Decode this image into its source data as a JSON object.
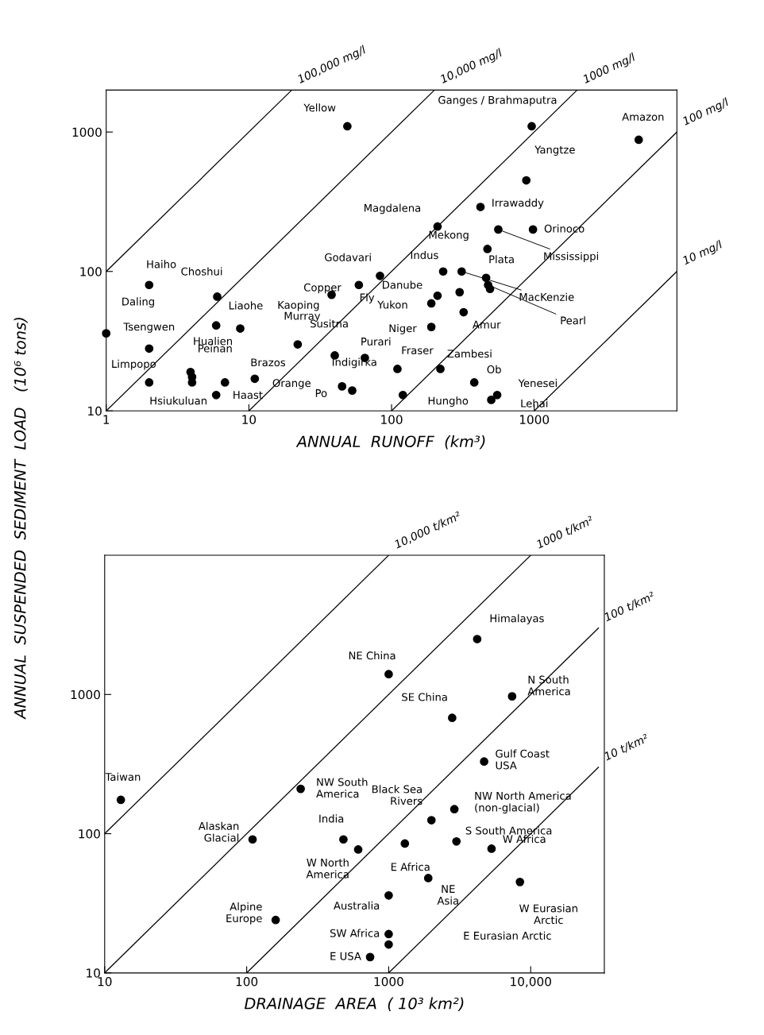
{
  "chart_data": [
    {
      "type": "scatter",
      "xlabel": "ANNUAL  RUNOFF  (km³)",
      "ylabel": "ANNUAL  SUSPENDED  SEDIMENT  LOAD   (10⁶ tons)",
      "log": "xy",
      "xlim": [
        1,
        10000
      ],
      "ylim": [
        10,
        2000
      ],
      "xticks": [
        1,
        10,
        100,
        1000
      ],
      "yticks": [
        10,
        100,
        1000
      ],
      "series": [
        {
          "marker": "circle",
          "color": "#000000",
          "x": [
            49,
            960,
            5400,
            880,
            420,
            210,
            980,
            560,
            470,
            230,
            460,
            310,
            475,
            320,
            210,
            190,
            190,
            110,
            220,
            380,
            550,
            500,
            120,
            83,
            59,
            38,
            22,
            40,
            65,
            53,
            45,
            8.7,
            5.9,
            6.8,
            11,
            5.9,
            2,
            2,
            1,
            2,
            6,
            490,
            300,
            3.9,
            4,
            4
          ],
          "values": [
            1100,
            1100,
            880,
            450,
            290,
            210,
            200,
            200,
            145,
            100,
            90,
            100,
            80,
            51,
            67,
            59,
            40,
            20,
            20,
            16,
            13,
            12,
            13,
            93,
            80,
            68,
            30,
            25,
            24,
            14,
            15,
            39,
            41,
            16,
            17,
            13,
            16,
            28,
            36,
            80,
            66,
            75,
            71,
            19,
            17.5,
            16
          ]
        },
        {
          "type": "line",
          "name": "100,000 mg/l",
          "color": "#000000",
          "x": [
            1,
            20
          ],
          "values": [
            100,
            2000
          ]
        },
        {
          "type": "line",
          "name": "10,000 mg/l",
          "color": "#000000",
          "x": [
            1,
            200
          ],
          "values": [
            10,
            2000
          ]
        },
        {
          "type": "line",
          "name": "1000 mg/l",
          "color": "#000000",
          "x": [
            10,
            2000
          ],
          "values": [
            10,
            2000
          ]
        },
        {
          "type": "line",
          "name": "100 mg/l",
          "color": "#000000",
          "x": [
            100,
            10000
          ],
          "values": [
            10,
            1000
          ]
        },
        {
          "type": "line",
          "name": "10 mg/l",
          "color": "#000000",
          "x": [
            1000,
            10000
          ],
          "values": [
            10,
            100
          ]
        }
      ],
      "annotations": [
        {
          "text": "Yellow",
          "x": 49,
          "y": 1100
        },
        {
          "text": "Ganges / Brahmaputra",
          "x": 960,
          "y": 1100
        },
        {
          "text": "Amazon",
          "x": 5400,
          "y": 880
        },
        {
          "text": "Yangtze",
          "x": 880,
          "y": 450
        },
        {
          "text": "Irrawaddy",
          "x": 420,
          "y": 290
        },
        {
          "text": "Magdalena",
          "x": 210,
          "y": 210
        },
        {
          "text": "Orinoco",
          "x": 980,
          "y": 200
        },
        {
          "text": "Mississippi",
          "x": 560,
          "y": 200
        },
        {
          "text": "Mekong",
          "x": 470,
          "y": 145
        },
        {
          "text": "Indus",
          "x": 230,
          "y": 100
        },
        {
          "text": "Plata",
          "x": 460,
          "y": 90
        },
        {
          "text": "MacKenzie",
          "x": 310,
          "y": 100
        },
        {
          "text": "Pearl",
          "x": 475,
          "y": 80
        },
        {
          "text": "Amur",
          "x": 320,
          "y": 51
        },
        {
          "text": "Danube",
          "x": 210,
          "y": 67
        },
        {
          "text": "Yukon",
          "x": 190,
          "y": 59
        },
        {
          "text": "Niger",
          "x": 190,
          "y": 40
        },
        {
          "text": "Fraser",
          "x": 110,
          "y": 20
        },
        {
          "text": "Zambesi",
          "x": 220,
          "y": 20
        },
        {
          "text": "Ob",
          "x": 380,
          "y": 16
        },
        {
          "text": "Yenesei",
          "x": 550,
          "y": 13
        },
        {
          "text": "Lehai",
          "x": 500,
          "y": 12
        },
        {
          "text": "Hungho",
          "x": 120,
          "y": 13
        },
        {
          "text": "Godavari",
          "x": 83,
          "y": 93
        },
        {
          "text": "Copper",
          "x": 59,
          "y": 80
        },
        {
          "text": "Kaoping",
          "x": 38,
          "y": 68
        },
        {
          "text": "Murray",
          "x": 22,
          "y": 30
        },
        {
          "text": "Susitna",
          "x": 40,
          "y": 25
        },
        {
          "text": "Purari",
          "x": 65,
          "y": 24
        },
        {
          "text": "Indigirka",
          "x": 53,
          "y": 14
        },
        {
          "text": "Po",
          "x": 45,
          "y": 15
        },
        {
          "text": "Liaohe",
          "x": 8.7,
          "y": 39
        },
        {
          "text": "Hualien",
          "x": 5.9,
          "y": 41
        },
        {
          "text": "Peinan",
          "x": 6.8,
          "y": 16
        },
        {
          "text": "Brazos",
          "x": 11,
          "y": 17
        },
        {
          "text": "Hsiukuluan",
          "x": 5.9,
          "y": 13
        },
        {
          "text": "Limpopo",
          "x": 2,
          "y": 16
        },
        {
          "text": "Tsengwen",
          "x": 2,
          "y": 28
        },
        {
          "text": "Daling",
          "x": 1,
          "y": 36
        },
        {
          "text": "Haiho",
          "x": 2,
          "y": 80
        },
        {
          "text": "Choshui",
          "x": 6,
          "y": 66
        },
        "Fly",
        "Haast",
        "Orange"
      ]
    },
    {
      "type": "scatter",
      "xlabel": "DRAINAGE  AREA  ( 10³ km²)",
      "log": "xy",
      "xlim": [
        10,
        33000
      ],
      "ylim": [
        10,
        10000
      ],
      "xticks": [
        10,
        100,
        1000,
        {
          "value": 10000,
          "label": "10,000"
        }
      ],
      "yticks": [
        10,
        100,
        1000
      ],
      "series": [
        {
          "marker": "circle",
          "color": "#000000",
          "x": [
            13,
            240,
            110,
            480,
            610,
            160,
            4200,
            1000,
            7400,
            2800,
            4700,
            2900,
            2000,
            1300,
            3000,
            5300,
            8400,
            1900,
            1000,
            1000,
            740,
            1000
          ],
          "values": [
            175,
            210,
            91,
            91,
            77,
            24,
            2500,
            1400,
            970,
            680,
            330,
            150,
            125,
            85,
            88,
            78,
            45,
            48,
            36,
            19,
            13,
            16
          ]
        },
        {
          "type": "line",
          "name": "10,000 t/km²",
          "color": "#000000",
          "x": [
            10,
            1000
          ],
          "values": [
            100,
            10000
          ]
        },
        {
          "type": "line",
          "name": "1000 t/km²",
          "color": "#000000",
          "x": [
            10,
            10000
          ],
          "values": [
            10,
            10000
          ]
        },
        {
          "type": "line",
          "name": "100 t/km²",
          "color": "#000000",
          "x": [
            100,
            30000
          ],
          "values": [
            10,
            3000
          ]
        },
        {
          "type": "line",
          "name": "10 t/km²",
          "color": "#000000",
          "x": [
            1000,
            30000
          ],
          "values": [
            10,
            300
          ]
        }
      ],
      "annotations": [
        {
          "text": "Taiwan",
          "x": 13,
          "y": 175
        },
        {
          "text": "NW South\nAmerica",
          "x": 240,
          "y": 210
        },
        {
          "text": "Alaskan\nGlacial",
          "x": 110,
          "y": 91
        },
        {
          "text": "India",
          "x": 480,
          "y": 91
        },
        {
          "text": "W North\nAmerica",
          "x": 610,
          "y": 77
        },
        {
          "text": "Alpine\nEurope",
          "x": 160,
          "y": 24
        },
        {
          "text": "Himalayas",
          "x": 4200,
          "y": 2500
        },
        {
          "text": "NE China",
          "x": 1000,
          "y": 1400
        },
        {
          "text": "N South\nAmerica",
          "x": 7400,
          "y": 970
        },
        {
          "text": "SE China",
          "x": 2800,
          "y": 680
        },
        {
          "text": "Gulf Coast\nUSA",
          "x": 4700,
          "y": 330
        },
        {
          "text": "NW North America\n(non-glacial)",
          "x": 2900,
          "y": 150
        },
        {
          "text": "Black Sea\nRivers",
          "x": 2000,
          "y": 125
        },
        {
          "text": "E Africa",
          "x": 1300,
          "y": 85
        },
        {
          "text": "S South America",
          "x": 3000,
          "y": 88
        },
        {
          "text": "W Africa",
          "x": 5300,
          "y": 78
        },
        {
          "text": "W Eurasian\nArctic",
          "x": 8400,
          "y": 45
        },
        {
          "text": "NE\nAsia",
          "x": 1900,
          "y": 48
        },
        {
          "text": "Australia",
          "x": 1000,
          "y": 36
        },
        {
          "text": "SW Africa",
          "x": 1000,
          "y": 19
        },
        {
          "text": "E USA",
          "x": 740,
          "y": 13
        },
        "E Eurasian Arctic"
      ]
    }
  ]
}
